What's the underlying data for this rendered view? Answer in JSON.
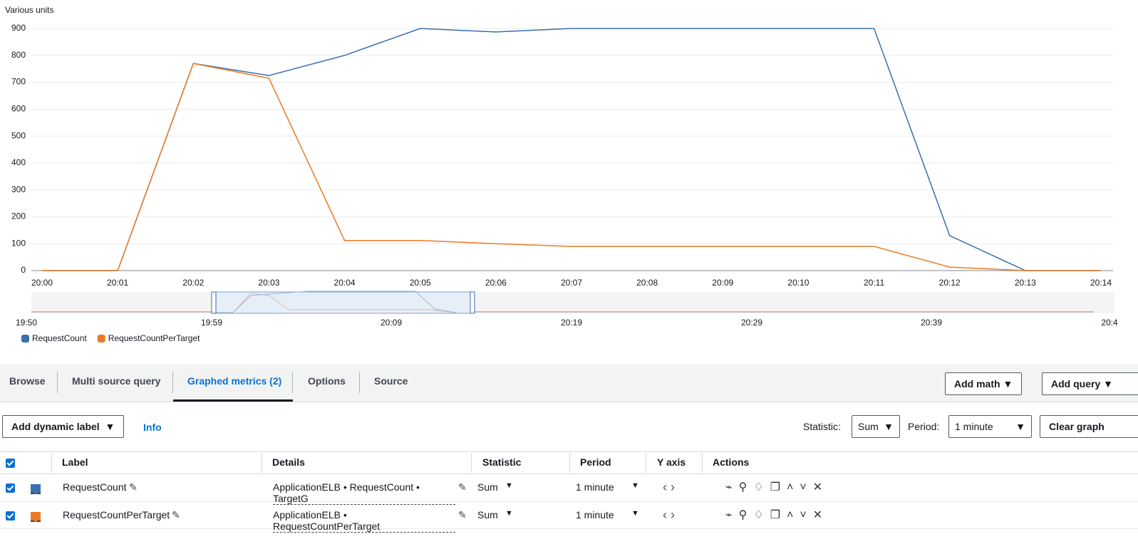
{
  "chart_data": {
    "type": "line",
    "y_axis_label": "Various units",
    "categories": [
      "20:00",
      "20:01",
      "20:02",
      "20:03",
      "20:04",
      "20:05",
      "20:06",
      "20:07",
      "20:08",
      "20:09",
      "20:10",
      "20:11",
      "20:12",
      "20:13",
      "20:14"
    ],
    "series": [
      {
        "name": "RequestCount",
        "color": "#3a6fb0",
        "values": [
          0,
          0,
          770,
          725,
          800,
          900,
          887,
          900,
          900,
          900,
          900,
          900,
          130,
          0,
          0
        ]
      },
      {
        "name": "RequestCountPerTarget",
        "color": "#ec7a24",
        "values": [
          0,
          0,
          770,
          715,
          112,
          112,
          100,
          90,
          90,
          90,
          90,
          90,
          13,
          0,
          0
        ]
      }
    ],
    "ylim": [
      0,
      900
    ],
    "yticks": [
      0,
      100,
      200,
      300,
      400,
      500,
      600,
      700,
      800,
      900
    ],
    "grid": true
  },
  "navigator": {
    "labels": [
      "19:50",
      "19:59",
      "20:09",
      "20:19",
      "20:29",
      "20:39",
      "20:4"
    ]
  },
  "tabs": [
    "Browse",
    "Multi source query",
    "Graphed metrics (2)",
    "Options",
    "Source"
  ],
  "buttons": {
    "add_math": "Add math",
    "add_query": "Add query"
  },
  "toolbar": {
    "add_dynamic_label": "Add dynamic label",
    "info": "Info",
    "statistic_label": "Statistic:",
    "statistic": "Sum",
    "period_label": "Period:",
    "period": "1 minute",
    "clear": "Clear graph"
  },
  "table": {
    "headers": [
      "Label",
      "Details",
      "Statistic",
      "Period",
      "Y axis",
      "Actions"
    ],
    "rows": [
      [
        "RequestCount",
        "ApplicationELB • RequestCount • TargetG",
        "Sum",
        "1 minute"
      ],
      [
        "RequestCountPerTarget",
        "ApplicationELB • RequestCountPerTarget",
        "Sum",
        "1 minute"
      ]
    ]
  }
}
